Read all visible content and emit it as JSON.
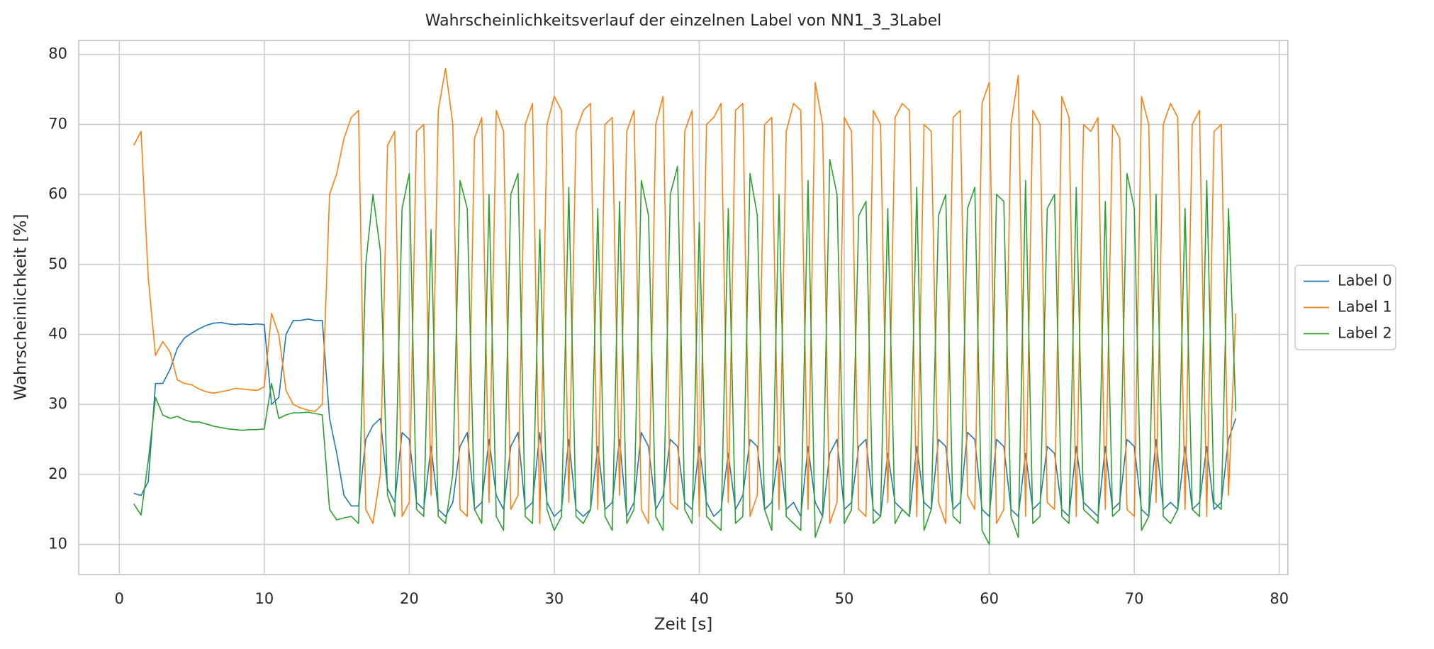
{
  "chart_data": {
    "type": "line",
    "title": "Wahrscheinlichkeitsverlauf der einzelnen Label von NN1_3_3Label",
    "xlabel": "Zeit [s]",
    "ylabel": "Wahrscheinlichkeit [%]",
    "xlim": [
      -2.8,
      80.6
    ],
    "ylim": [
      5.7,
      82.0
    ],
    "xticks": [
      0,
      10,
      20,
      30,
      40,
      50,
      60,
      70,
      80
    ],
    "yticks": [
      10,
      20,
      30,
      40,
      50,
      60,
      70,
      80
    ],
    "grid": true,
    "legend": "center right",
    "x": [
      1,
      1.5,
      2,
      2.5,
      3,
      3.5,
      4,
      4.5,
      5,
      5.5,
      6,
      6.5,
      7,
      7.5,
      8,
      8.5,
      9,
      9.5,
      10,
      10.5,
      11,
      11.5,
      12,
      12.5,
      13,
      13.5,
      14,
      14.5,
      15,
      15.5,
      16,
      16.5,
      17,
      17.5,
      18,
      18.5,
      19,
      19.5,
      20,
      20.5,
      21,
      21.5,
      22,
      22.5,
      23,
      23.5,
      24,
      24.5,
      25,
      25.5,
      26,
      26.5,
      27,
      27.5,
      28,
      28.5,
      29,
      29.5,
      30,
      30.5,
      31,
      31.5,
      32,
      32.5,
      33,
      33.5,
      34,
      34.5,
      35,
      35.5,
      36,
      36.5,
      37,
      37.5,
      38,
      38.5,
      39,
      39.5,
      40,
      40.5,
      41,
      41.5,
      42,
      42.5,
      43,
      43.5,
      44,
      44.5,
      45,
      45.5,
      46,
      46.5,
      47,
      47.5,
      48,
      48.5,
      49,
      49.5,
      50,
      50.5,
      51,
      51.5,
      52,
      52.5,
      53,
      53.5,
      54,
      54.5,
      55,
      55.5,
      56,
      56.5,
      57,
      57.5,
      58,
      58.5,
      59,
      59.5,
      60,
      60.5,
      61,
      61.5,
      62,
      62.5,
      63,
      63.5,
      64,
      64.5,
      65,
      65.5,
      66,
      66.5,
      67,
      67.5,
      68,
      68.5,
      69,
      69.5,
      70,
      70.5,
      71,
      71.5,
      72,
      72.5,
      73,
      73.5,
      74,
      74.5,
      75,
      75.5,
      76,
      76.5,
      77
    ],
    "series": [
      {
        "name": "Label 0",
        "color": "#1f77b4",
        "values": [
          17.3,
          17,
          19,
          33,
          33,
          35,
          38,
          39.5,
          40.2,
          40.8,
          41.3,
          41.6,
          41.7,
          41.5,
          41.4,
          41.5,
          41.4,
          41.5,
          41.4,
          30,
          31,
          40,
          42,
          42,
          42.2,
          42,
          42,
          28,
          23,
          17,
          15.5,
          15.5,
          25,
          27,
          28,
          18,
          16,
          26,
          25,
          16,
          15,
          24,
          15,
          14,
          16,
          24,
          26,
          15,
          16,
          25,
          17,
          15,
          24,
          26,
          15,
          16,
          26,
          16,
          14,
          15,
          25,
          15,
          14,
          15,
          24,
          15,
          16,
          25,
          14,
          16,
          26,
          24,
          15,
          17,
          25,
          24,
          16,
          15,
          24,
          16,
          14,
          15,
          23,
          15,
          17,
          25,
          24,
          15,
          16,
          24,
          15,
          16,
          14,
          24,
          16,
          14,
          23,
          25,
          15,
          16,
          24,
          25,
          15,
          14,
          23,
          16,
          15,
          14,
          24,
          16,
          15,
          25,
          24,
          15,
          16,
          26,
          25,
          15,
          14,
          25,
          24,
          15,
          14,
          23,
          15,
          16,
          24,
          23,
          15,
          14,
          24,
          16,
          15,
          14,
          24,
          15,
          16,
          25,
          24,
          15,
          14,
          25,
          15,
          16,
          15,
          24,
          15,
          16,
          24,
          15,
          16,
          25,
          28
        ]
      },
      {
        "name": "Label 1",
        "color": "#ff7f0e",
        "values": [
          67,
          69,
          48,
          37,
          39,
          37.5,
          33.5,
          33,
          32.8,
          32.2,
          31.8,
          31.6,
          31.8,
          32,
          32.3,
          32.2,
          32.1,
          32,
          32.5,
          43,
          40,
          32,
          30,
          29.5,
          29.2,
          29,
          30,
          60,
          63,
          68,
          71,
          72,
          15,
          13,
          20,
          67,
          69,
          14,
          16,
          69,
          70,
          17,
          72,
          78,
          70,
          15,
          14,
          68,
          71,
          16,
          72,
          69,
          15,
          17,
          70,
          73,
          13,
          70,
          74,
          72,
          16,
          69,
          72,
          73,
          15,
          70,
          71,
          17,
          69,
          72,
          15,
          13,
          70,
          74,
          16,
          15,
          69,
          72,
          14,
          70,
          71,
          73,
          16,
          72,
          73,
          14,
          17,
          70,
          71,
          15,
          69,
          73,
          72,
          15,
          76,
          70,
          13,
          16,
          71,
          69,
          15,
          14,
          72,
          70,
          16,
          71,
          73,
          72,
          14,
          70,
          69,
          16,
          13,
          71,
          72,
          17,
          15,
          73,
          76,
          13,
          15,
          70,
          77,
          14,
          72,
          70,
          16,
          15,
          74,
          71,
          14,
          70,
          69,
          71,
          15,
          70,
          68,
          15,
          14,
          74,
          70,
          16,
          70,
          73,
          71,
          15,
          70,
          72,
          14,
          69,
          70,
          17,
          43
        ]
      },
      {
        "name": "Label 2",
        "color": "#2ca02c",
        "values": [
          15.8,
          14.2,
          22,
          31,
          28.5,
          28,
          28.3,
          27.8,
          27.5,
          27.5,
          27.2,
          26.9,
          26.7,
          26.5,
          26.4,
          26.3,
          26.4,
          26.4,
          26.5,
          33,
          28,
          28.5,
          28.8,
          28.8,
          28.9,
          28.7,
          28.5,
          15,
          13.5,
          13.8,
          14,
          13,
          50,
          60,
          52,
          17,
          14,
          58,
          63,
          15,
          14,
          55,
          14,
          13,
          20,
          62,
          58,
          15,
          13,
          60,
          14,
          12,
          60,
          63,
          14,
          13,
          55,
          15,
          12,
          14,
          61,
          14,
          13,
          15,
          58,
          14,
          12,
          59,
          13,
          15,
          62,
          57,
          14,
          12,
          60,
          64,
          15,
          13,
          56,
          14,
          13,
          12,
          58,
          13,
          14,
          63,
          57,
          15,
          12,
          60,
          14,
          13,
          12,
          62,
          11,
          14,
          65,
          60,
          13,
          15,
          57,
          59,
          13,
          14,
          58,
          13,
          15,
          14,
          61,
          12,
          15,
          57,
          60,
          14,
          13,
          58,
          61,
          12,
          10,
          60,
          59,
          14,
          11,
          62,
          13,
          14,
          58,
          60,
          14,
          13,
          61,
          15,
          14,
          13,
          59,
          14,
          15,
          63,
          58,
          12,
          14,
          60,
          14,
          13,
          15,
          58,
          15,
          14,
          62,
          16,
          15,
          58,
          29
        ]
      }
    ]
  }
}
